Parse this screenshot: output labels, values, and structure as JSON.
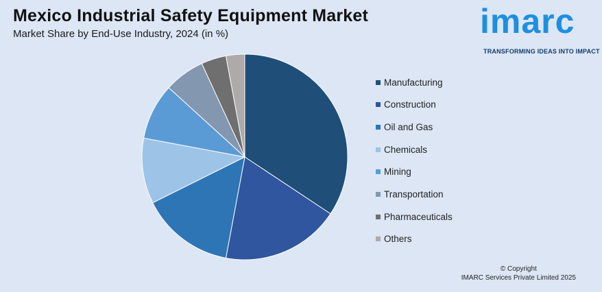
{
  "header": {
    "title": "Mexico Industrial Safety Equipment Market",
    "subtitle": "Market Share by End-Use Industry, 2024 (in %)"
  },
  "logo": {
    "word": "imarc",
    "tagline": "TRANSFORMING IDEAS INTO IMPACT",
    "color": "#1e8fe0"
  },
  "footer": {
    "copyright_line1": "© Copyright",
    "copyright_line2": "IMARC Services Private Limited 2025"
  },
  "chart_data": {
    "type": "pie",
    "title": "Mexico Industrial Safety Equipment Market",
    "subtitle": "Market Share by End-Use Industry, 2024 (in %)",
    "legend_position": "right",
    "slices": [
      {
        "label": "Manufacturing",
        "value": 35.0,
        "color": "#1f4e79"
      },
      {
        "label": "Construction",
        "value": 19.0,
        "color": "#2f569e"
      },
      {
        "label": "Oil and Gas",
        "value": 15.0,
        "color": "#2e75b6"
      },
      {
        "label": "Chemicals",
        "value": 10.5,
        "color": "#9dc3e6"
      },
      {
        "label": "Mining",
        "value": 9.0,
        "color": "#5b9bd5"
      },
      {
        "label": "Transportation",
        "value": 6.5,
        "color": "#8497b0"
      },
      {
        "label": "Pharmaceuticals",
        "value": 4.0,
        "color": "#6f6f6f"
      },
      {
        "label": "Others",
        "value": 3.0,
        "color": "#aeaaaa"
      }
    ]
  }
}
